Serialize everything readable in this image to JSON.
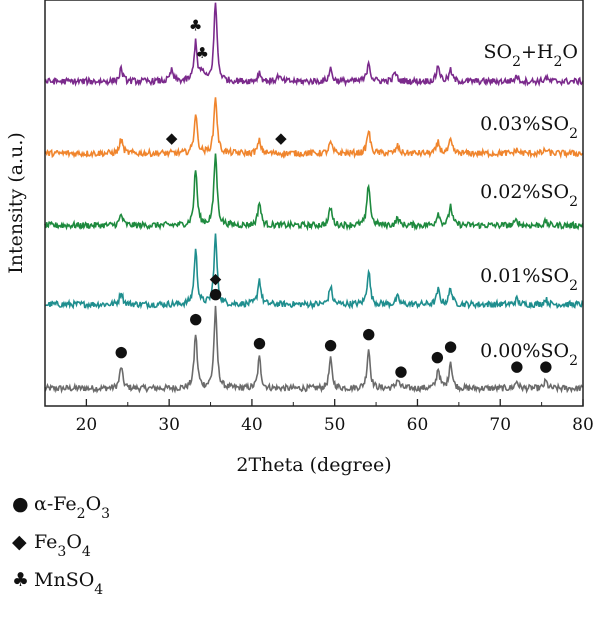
{
  "chart_data": {
    "type": "line",
    "xlabel": "2Theta (degree)",
    "ylabel": "Intensity (a.u.)",
    "xlim": [
      15,
      80
    ],
    "xticks": [
      "20",
      "30",
      "40",
      "50",
      "60",
      "70",
      "80"
    ],
    "grid": false,
    "series": [
      {
        "name": "0.00%SO2",
        "name_parts": [
          {
            "t": "0.00%SO"
          },
          {
            "t": "2",
            "sub": true
          }
        ],
        "color": "#6b6b6b",
        "baseline": 0.05,
        "peaks": [
          [
            24.2,
            0.12
          ],
          [
            33.2,
            0.3
          ],
          [
            35.6,
            0.44
          ],
          [
            40.9,
            0.17
          ],
          [
            49.5,
            0.16
          ],
          [
            54.1,
            0.22
          ],
          [
            57.6,
            0.05
          ],
          [
            62.5,
            0.11
          ],
          [
            64.0,
            0.15
          ],
          [
            72.0,
            0.04
          ],
          [
            75.5,
            0.04
          ]
        ]
      },
      {
        "name": "0.01%SO2",
        "name_parts": [
          {
            "t": "0.01%SO"
          },
          {
            "t": "2",
            "sub": true
          }
        ],
        "color": "#1f8e8e",
        "baseline": 0.05,
        "peaks": [
          [
            24.2,
            0.07
          ],
          [
            33.2,
            0.3
          ],
          [
            35.6,
            0.38
          ],
          [
            40.9,
            0.14
          ],
          [
            49.5,
            0.1
          ],
          [
            54.1,
            0.19
          ],
          [
            57.6,
            0.04
          ],
          [
            62.5,
            0.08
          ],
          [
            64.0,
            0.09
          ],
          [
            72.0,
            0.03
          ],
          [
            75.5,
            0.03
          ]
        ]
      },
      {
        "name": "0.02%SO2",
        "name_parts": [
          {
            "t": "0.02%SO"
          },
          {
            "t": "2",
            "sub": true
          }
        ],
        "color": "#1e8a3e",
        "baseline": 0.05,
        "peaks": [
          [
            24.2,
            0.06
          ],
          [
            33.2,
            0.31
          ],
          [
            35.6,
            0.4
          ],
          [
            40.9,
            0.13
          ],
          [
            49.5,
            0.1
          ],
          [
            54.1,
            0.23
          ],
          [
            57.6,
            0.04
          ],
          [
            62.5,
            0.07
          ],
          [
            64.0,
            0.11
          ],
          [
            72.0,
            0.03
          ],
          [
            75.5,
            0.02
          ]
        ]
      },
      {
        "name": "0.03%SO2",
        "name_parts": [
          {
            "t": "0.03%SO"
          },
          {
            "t": "2",
            "sub": true
          }
        ],
        "color": "#f0852d",
        "baseline": 0.05,
        "peaks": [
          [
            24.2,
            0.08
          ],
          [
            33.2,
            0.22
          ],
          [
            35.6,
            0.32
          ],
          [
            40.9,
            0.07
          ],
          [
            49.5,
            0.06
          ],
          [
            54.1,
            0.13
          ],
          [
            57.6,
            0.04
          ],
          [
            62.5,
            0.06
          ],
          [
            64.0,
            0.07
          ],
          [
            72.0,
            0.02
          ],
          [
            75.5,
            0.02
          ]
        ]
      },
      {
        "name": "SO2+H2O",
        "name_parts": [
          {
            "t": "SO"
          },
          {
            "t": "2",
            "sub": true
          },
          {
            "t": "+H"
          },
          {
            "t": "2",
            "sub": true
          },
          {
            "t": "O"
          }
        ],
        "color": "#7b2a8c",
        "baseline": 0.05,
        "peaks": [
          [
            24.2,
            0.07
          ],
          [
            30.3,
            0.06
          ],
          [
            33.2,
            0.22
          ],
          [
            34.0,
            0.05
          ],
          [
            35.6,
            0.44
          ],
          [
            40.9,
            0.05
          ],
          [
            43.2,
            0.03
          ],
          [
            49.5,
            0.07
          ],
          [
            54.1,
            0.11
          ],
          [
            57.3,
            0.05
          ],
          [
            62.5,
            0.09
          ],
          [
            64.0,
            0.06
          ],
          [
            72.0,
            0.03
          ],
          [
            75.5,
            0.02
          ]
        ]
      }
    ],
    "markers": [
      {
        "symbol": "●",
        "x": 24.2,
        "series": 0
      },
      {
        "symbol": "●",
        "x": 33.2,
        "series": 0
      },
      {
        "symbol": "●",
        "x": 35.6,
        "series": 0
      },
      {
        "symbol": "◆",
        "x": 35.6,
        "series": 0,
        "stack": 1
      },
      {
        "symbol": "●",
        "x": 40.9,
        "series": 0
      },
      {
        "symbol": "●",
        "x": 49.5,
        "series": 0
      },
      {
        "symbol": "●",
        "x": 54.1,
        "series": 0
      },
      {
        "symbol": "●",
        "x": 58.0,
        "series": 0
      },
      {
        "symbol": "●",
        "x": 62.4,
        "series": 0
      },
      {
        "symbol": "●",
        "x": 64.0,
        "series": 0
      },
      {
        "symbol": "●",
        "x": 72.0,
        "series": 0
      },
      {
        "symbol": "●",
        "x": 75.5,
        "series": 0
      },
      {
        "symbol": "◆",
        "x": 30.3,
        "series": 3
      },
      {
        "symbol": "◆",
        "x": 43.5,
        "series": 3
      },
      {
        "symbol": "♣",
        "x": 33.2,
        "series": 4
      },
      {
        "symbol": "♣",
        "x": 34.0,
        "series": 4
      }
    ]
  },
  "legend": [
    {
      "symbol": "●",
      "parts": [
        {
          "t": "α-Fe"
        },
        {
          "t": "2",
          "sub": true
        },
        {
          "t": "O"
        },
        {
          "t": "3",
          "sub": true
        }
      ]
    },
    {
      "symbol": "◆",
      "parts": [
        {
          "t": "Fe"
        },
        {
          "t": "3",
          "sub": true
        },
        {
          "t": "O"
        },
        {
          "t": "4",
          "sub": true
        }
      ]
    },
    {
      "symbol": "♣",
      "parts": [
        {
          "t": "MnSO"
        },
        {
          "t": "4",
          "sub": true
        }
      ]
    }
  ]
}
